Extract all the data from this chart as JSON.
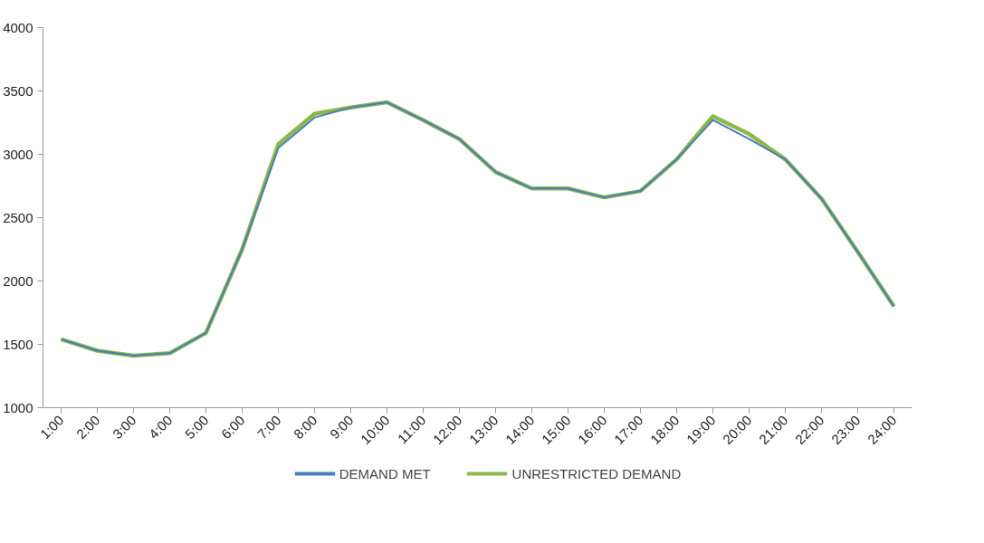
{
  "chart_data": {
    "type": "line",
    "categories": [
      "1:00",
      "2:00",
      "3:00",
      "4:00",
      "5:00",
      "6:00",
      "7:00",
      "8:00",
      "9:00",
      "10:00",
      "11:00",
      "12:00",
      "13:00",
      "14:00",
      "15:00",
      "16:00",
      "17:00",
      "18:00",
      "19:00",
      "20:00",
      "21:00",
      "22:00",
      "23:00",
      "24:00"
    ],
    "series": [
      {
        "name": "DEMAND MET",
        "color": "#4a7ebb",
        "values": [
          1540,
          1450,
          1410,
          1430,
          1590,
          2250,
          3050,
          3290,
          3370,
          3410,
          3270,
          3120,
          2860,
          2730,
          2730,
          2660,
          2710,
          2960,
          3270,
          3120,
          2960,
          2650,
          2230,
          1800
        ]
      },
      {
        "name": "UNRESTRICTED DEMAND",
        "color": "#8cb84a",
        "values": [
          1540,
          1450,
          1410,
          1430,
          1590,
          2250,
          3080,
          3320,
          3370,
          3410,
          3270,
          3120,
          2860,
          2730,
          2730,
          2660,
          2710,
          2960,
          3300,
          3160,
          2960,
          2650,
          2230,
          1800
        ]
      }
    ],
    "ylim": [
      1000,
      4000
    ],
    "yticks": [
      1000,
      1500,
      2000,
      2500,
      3000,
      3500,
      4000
    ],
    "grid": false,
    "legend": "bottom",
    "marker": "none",
    "line_style": "solid"
  }
}
